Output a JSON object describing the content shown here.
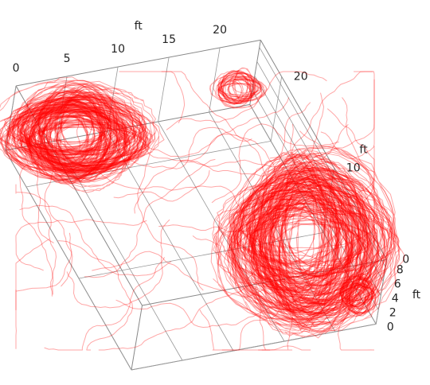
{
  "chart_data": {
    "type": "trajectory3d",
    "xlabel": "ft",
    "ylabel": "ft",
    "zlabel": "ft",
    "xlim": [
      0,
      24
    ],
    "xticks": [
      0,
      5,
      10,
      15,
      20
    ],
    "ylim": [
      0,
      24
    ],
    "yticks": [
      0,
      10,
      20
    ],
    "zlim": [
      0,
      9
    ],
    "zticks": [
      0,
      2,
      4,
      6,
      8
    ],
    "color": "#ff0000",
    "grid": true
  }
}
